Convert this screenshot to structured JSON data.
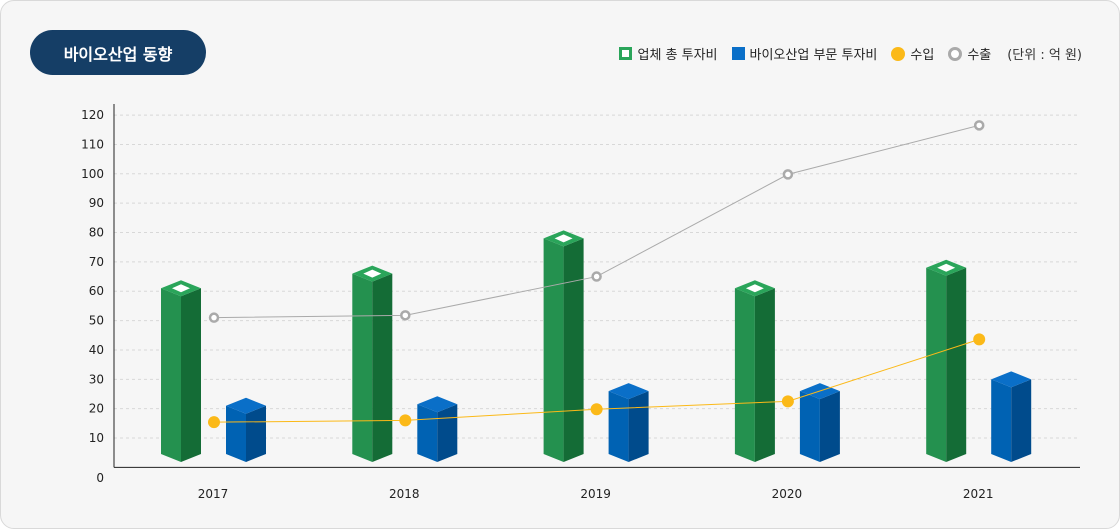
{
  "title": "바이오산업 동향",
  "legend": {
    "total": "업체 총 투자비",
    "bio": "바이오산업 부문 투자비",
    "import": "수입",
    "export": "수출",
    "unit": "(단위 : 억 원)"
  },
  "chart_data": {
    "type": "bar",
    "categories": [
      "2017",
      "2018",
      "2019",
      "2020",
      "2021"
    ],
    "ylim": [
      0,
      120
    ],
    "yticks": [
      0,
      10,
      20,
      30,
      40,
      50,
      60,
      70,
      80,
      90,
      100,
      110,
      120
    ],
    "grid": true,
    "legend_position": "top-right",
    "series": [
      {
        "name": "업체 총 투자비",
        "kind": "bar3d",
        "color": "#24914f",
        "values": [
          61,
          66,
          78,
          61,
          68
        ]
      },
      {
        "name": "바이오산업 부문 투자비",
        "kind": "bar3d",
        "color": "#0060b0",
        "values": [
          21,
          21.5,
          26,
          26,
          30
        ]
      },
      {
        "name": "수입",
        "kind": "line",
        "color": "#fbb918",
        "values": [
          15.4,
          16,
          19.8,
          22.5,
          43.6
        ]
      },
      {
        "name": "수출",
        "kind": "line",
        "color": "#aaaaaa",
        "values": [
          51,
          51.8,
          65,
          99.8,
          116.5
        ]
      }
    ]
  }
}
